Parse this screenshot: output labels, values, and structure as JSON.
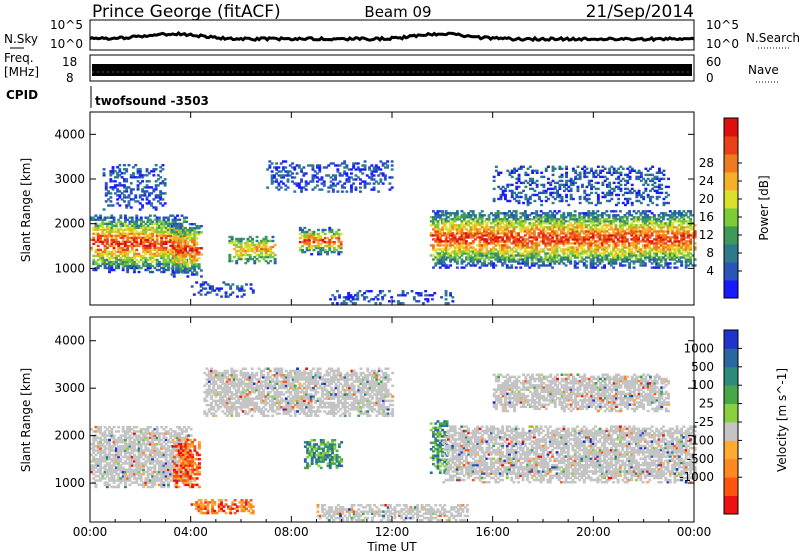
{
  "header": {
    "station": "Prince George (fitACF)",
    "beam": "Beam 09",
    "date": "21/Sep/2014"
  },
  "noise_panel": {
    "left_label": "N.Sky",
    "right_label": "N.Search",
    "ticks": [
      "10^5",
      "10^0"
    ]
  },
  "freq_panel": {
    "left_label_1": "Freq.",
    "left_label_2": "[MHz]",
    "left_ticks": [
      "18",
      "8"
    ],
    "right_label": "Nave",
    "right_ticks": [
      "60",
      "0"
    ]
  },
  "cpid": {
    "label": "CPID",
    "value": "twofsound -3503"
  },
  "chart_data": [
    {
      "type": "heatmap",
      "name": "power",
      "ylabel": "Slant Range [km]",
      "ylim": [
        180,
        4500
      ],
      "yticks": [
        "1000",
        "2000",
        "3000",
        "4000"
      ],
      "xlim_hours": [
        0,
        24
      ],
      "colorbar": {
        "label": "Power [dB]",
        "ticks": [
          "4",
          "8",
          "12",
          "16",
          "20",
          "24",
          "28"
        ],
        "colors": [
          "#1a1aff",
          "#2a55b8",
          "#2d7a8c",
          "#3f9a5a",
          "#7ccc3a",
          "#dde02a",
          "#f5b02a",
          "#f07a20",
          "#e84018",
          "#dd1010"
        ]
      },
      "echo_regions": [
        {
          "t": [
            0.0,
            3.8
          ],
          "r": [
            900,
            2200
          ],
          "level": "high"
        },
        {
          "t": [
            0.5,
            3.0
          ],
          "r": [
            2300,
            3300
          ],
          "level": "low"
        },
        {
          "t": [
            3.2,
            4.4
          ],
          "r": [
            800,
            2000
          ],
          "level": "high"
        },
        {
          "t": [
            4.0,
            6.5
          ],
          "r": [
            350,
            700
          ],
          "level": "low"
        },
        {
          "t": [
            5.5,
            7.3
          ],
          "r": [
            1100,
            1700
          ],
          "level": "mid"
        },
        {
          "t": [
            7.0,
            12.0
          ],
          "r": [
            2700,
            3400
          ],
          "level": "low"
        },
        {
          "t": [
            8.3,
            10.0
          ],
          "r": [
            1300,
            1900
          ],
          "level": "high"
        },
        {
          "t": [
            9.5,
            14.5
          ],
          "r": [
            200,
            500
          ],
          "level": "low"
        },
        {
          "t": [
            13.5,
            14.2
          ],
          "r": [
            1000,
            2300
          ],
          "level": "high"
        },
        {
          "t": [
            14.0,
            24.0
          ],
          "r": [
            1000,
            2300
          ],
          "level": "high"
        },
        {
          "t": [
            16.0,
            23.0
          ],
          "r": [
            2400,
            3300
          ],
          "level": "low"
        }
      ]
    },
    {
      "type": "heatmap",
      "name": "velocity",
      "ylabel": "Slant Range [km]",
      "ylim": [
        180,
        4500
      ],
      "yticks": [
        "1000",
        "2000",
        "3000",
        "4000"
      ],
      "xlim_hours": [
        0,
        24
      ],
      "xticks": [
        "00:00",
        "04:00",
        "08:00",
        "12:00",
        "16:00",
        "20:00",
        "00:00"
      ],
      "xlabel": "Time UT",
      "colorbar": {
        "label": "Velocity [m s^-1]",
        "ticks": [
          "1000",
          "500",
          "100",
          "25",
          "-25",
          "-100",
          "-500",
          "-1000"
        ],
        "colors": [
          "#2233cc",
          "#2a66a0",
          "#2e8a7a",
          "#48a848",
          "#88d040",
          "#c4c4c4",
          "#ffaa33",
          "#ff8822",
          "#ff5511",
          "#ee1111"
        ]
      },
      "echo_regions": [
        {
          "t": [
            0.0,
            4.0
          ],
          "r": [
            900,
            2200
          ],
          "level": "ground"
        },
        {
          "t": [
            3.3,
            4.3
          ],
          "r": [
            900,
            1900
          ],
          "level": "away"
        },
        {
          "t": [
            4.0,
            6.5
          ],
          "r": [
            350,
            650
          ],
          "level": "away"
        },
        {
          "t": [
            4.5,
            12.0
          ],
          "r": [
            2400,
            3400
          ],
          "level": "ground"
        },
        {
          "t": [
            8.5,
            10.0
          ],
          "r": [
            1300,
            1900
          ],
          "level": "toward"
        },
        {
          "t": [
            9.0,
            15.0
          ],
          "r": [
            200,
            550
          ],
          "level": "ground"
        },
        {
          "t": [
            13.5,
            14.2
          ],
          "r": [
            1200,
            2300
          ],
          "level": "toward"
        },
        {
          "t": [
            14.0,
            24.0
          ],
          "r": [
            1000,
            2200
          ],
          "level": "ground"
        },
        {
          "t": [
            16.0,
            23.0
          ],
          "r": [
            2500,
            3300
          ],
          "level": "ground"
        }
      ]
    }
  ]
}
